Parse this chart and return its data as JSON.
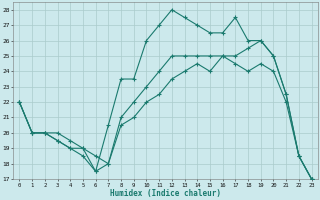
{
  "xlabel": "Humidex (Indice chaleur)",
  "bg_color": "#cce9ec",
  "grid_color": "#aacccc",
  "line_color": "#1a7a6e",
  "xlim": [
    -0.5,
    23.5
  ],
  "ylim": [
    17,
    28.5
  ],
  "yticks": [
    17,
    18,
    19,
    20,
    21,
    22,
    23,
    24,
    25,
    26,
    27,
    28
  ],
  "xticks": [
    0,
    1,
    2,
    3,
    4,
    5,
    6,
    7,
    8,
    9,
    10,
    11,
    12,
    13,
    14,
    15,
    16,
    17,
    18,
    19,
    20,
    21,
    22,
    23
  ],
  "line1_x": [
    0,
    1,
    2,
    3,
    4,
    5,
    6,
    7,
    8,
    9,
    10,
    11,
    12,
    13,
    14,
    15,
    16,
    17,
    18,
    19,
    20,
    21,
    22,
    23
  ],
  "line1_y": [
    22,
    20,
    20,
    19.5,
    19,
    18.5,
    17.5,
    20.5,
    23.5,
    23.5,
    26,
    27,
    28,
    27.5,
    27,
    26.5,
    26.5,
    27.5,
    26,
    26,
    25,
    22.5,
    18.5,
    17
  ],
  "line2_x": [
    0,
    1,
    2,
    3,
    4,
    5,
    6,
    7,
    8,
    9,
    10,
    11,
    12,
    13,
    14,
    15,
    16,
    17,
    18,
    19,
    20,
    21,
    22,
    23
  ],
  "line2_y": [
    22,
    20,
    20,
    19.5,
    19,
    19,
    18.5,
    18,
    20.5,
    21,
    22,
    22.5,
    23.5,
    24,
    24.5,
    24,
    25,
    25,
    25.5,
    26,
    25,
    22.5,
    18.5,
    17
  ],
  "line3_x": [
    0,
    1,
    2,
    3,
    4,
    5,
    6,
    7,
    8,
    9,
    10,
    11,
    12,
    13,
    14,
    15,
    16,
    17,
    18,
    19,
    20,
    21,
    22,
    23
  ],
  "line3_y": [
    22,
    20,
    20,
    20,
    19.5,
    19,
    17.5,
    18,
    21,
    22,
    23,
    24,
    25,
    25,
    25,
    25,
    25,
    24.5,
    24,
    24.5,
    24,
    22,
    18.5,
    17
  ]
}
